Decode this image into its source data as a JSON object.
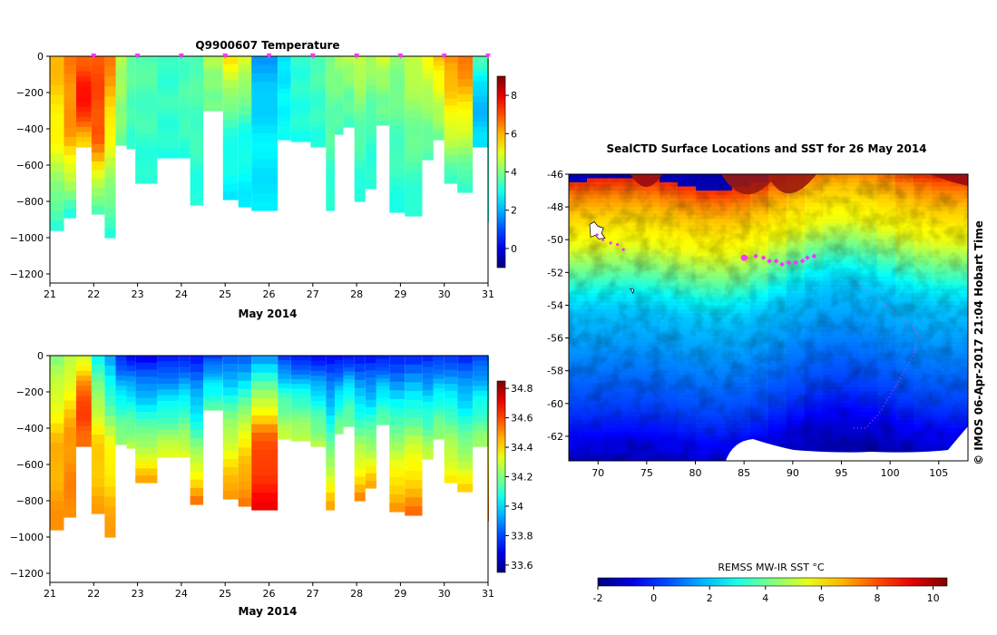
{
  "colors": {
    "pink_marker": "#ff33ff",
    "background": "#ffffff",
    "axis": "#000000",
    "map_white": "#ffffff"
  },
  "side_label": "© IMOS 06-Apr-2017 21:04 Hobart Time",
  "chart_data": [
    {
      "id": "temperature_section",
      "type": "heatmap",
      "title": "Q9900607  Temperature",
      "xlabel": "May 2014",
      "ylabel": "",
      "xlim": [
        21,
        31
      ],
      "ylim": [
        -1250,
        0
      ],
      "xticks": [
        21,
        22,
        23,
        24,
        25,
        26,
        27,
        28,
        29,
        30,
        31
      ],
      "xtick_labels": [
        "21",
        "22",
        "23",
        "24",
        "25",
        "26",
        "27",
        "28",
        "29",
        "30",
        "31"
      ],
      "yticks": [
        0,
        -200,
        -400,
        -600,
        -800,
        -1000,
        -1200
      ],
      "ytick_labels": [
        "0",
        "−200",
        "−400",
        "−600",
        "−800",
        "−1000",
        "−1200"
      ],
      "profile_marks": [
        22,
        23,
        24,
        25,
        26,
        27,
        28,
        29,
        30,
        31
      ],
      "colorbar": {
        "min": -1,
        "max": 9,
        "ticks": [
          0,
          2,
          4,
          6,
          8
        ],
        "tick_labels": [
          "0",
          "2",
          "4",
          "6",
          "8"
        ],
        "colormap": "jet"
      },
      "profiles": [
        {
          "x0": 21.0,
          "x1": 21.32,
          "maxdepth": 960,
          "top": 6.0,
          "mid": 5.2,
          "deep": 3.0
        },
        {
          "x0": 21.32,
          "x1": 21.6,
          "maxdepth": 890,
          "top": 6.5,
          "mid": 6.2,
          "deep": 3.0
        },
        {
          "x0": 21.6,
          "x1": 21.95,
          "maxdepth": 500,
          "top": 6.8,
          "mid": 7.8,
          "deep": 5.5
        },
        {
          "x0": 21.95,
          "x1": 22.25,
          "maxdepth": 870,
          "top": 7.0,
          "mid": 7.0,
          "deep": 3.2
        },
        {
          "x0": 22.25,
          "x1": 22.5,
          "maxdepth": 1000,
          "top": 6.6,
          "mid": 5.0,
          "deep": 3.0
        },
        {
          "x0": 22.5,
          "x1": 22.75,
          "maxdepth": 490,
          "top": 4.5,
          "mid": 4.2,
          "deep": 3.8
        },
        {
          "x0": 22.75,
          "x1": 22.95,
          "maxdepth": 510,
          "top": 3.8,
          "mid": 3.5,
          "deep": 3.2
        },
        {
          "x0": 22.95,
          "x1": 23.45,
          "maxdepth": 700,
          "top": 3.6,
          "mid": 3.4,
          "deep": 3.0
        },
        {
          "x0": 23.45,
          "x1": 23.95,
          "maxdepth": 560,
          "top": 3.2,
          "mid": 3.3,
          "deep": 3.0
        },
        {
          "x0": 23.95,
          "x1": 24.2,
          "maxdepth": 560,
          "top": 3.4,
          "mid": 3.5,
          "deep": 3.1
        },
        {
          "x0": 24.2,
          "x1": 24.5,
          "maxdepth": 820,
          "top": 3.6,
          "mid": 3.4,
          "deep": 3.0
        },
        {
          "x0": 24.5,
          "x1": 24.95,
          "maxdepth": 300,
          "top": 4.5,
          "mid": 4.0,
          "deep": 3.8
        },
        {
          "x0": 24.95,
          "x1": 25.3,
          "maxdepth": 790,
          "top": 5.5,
          "mid": 3.2,
          "deep": 2.6
        },
        {
          "x0": 25.3,
          "x1": 25.6,
          "maxdepth": 830,
          "top": 5.0,
          "mid": 3.0,
          "deep": 2.6
        },
        {
          "x0": 25.6,
          "x1": 26.2,
          "maxdepth": 850,
          "top": 1.8,
          "mid": 2.6,
          "deep": 2.5
        },
        {
          "x0": 26.2,
          "x1": 26.5,
          "maxdepth": 460,
          "top": 2.4,
          "mid": 2.7,
          "deep": 2.8
        },
        {
          "x0": 26.5,
          "x1": 26.95,
          "maxdepth": 470,
          "top": 3.2,
          "mid": 3.1,
          "deep": 3.0
        },
        {
          "x0": 26.95,
          "x1": 27.3,
          "maxdepth": 500,
          "top": 3.6,
          "mid": 3.3,
          "deep": 3.1
        },
        {
          "x0": 27.3,
          "x1": 27.5,
          "maxdepth": 850,
          "top": 4.0,
          "mid": 3.6,
          "deep": 3.0
        },
        {
          "x0": 27.5,
          "x1": 27.7,
          "maxdepth": 430,
          "top": 4.3,
          "mid": 3.8,
          "deep": 3.4
        },
        {
          "x0": 27.7,
          "x1": 27.95,
          "maxdepth": 390,
          "top": 4.6,
          "mid": 3.8,
          "deep": 3.4
        },
        {
          "x0": 27.95,
          "x1": 28.2,
          "maxdepth": 800,
          "top": 4.8,
          "mid": 3.6,
          "deep": 3.0
        },
        {
          "x0": 28.2,
          "x1": 28.45,
          "maxdepth": 730,
          "top": 4.4,
          "mid": 3.4,
          "deep": 3.0
        },
        {
          "x0": 28.45,
          "x1": 28.75,
          "maxdepth": 380,
          "top": 4.8,
          "mid": 4.0,
          "deep": 3.6
        },
        {
          "x0": 28.75,
          "x1": 29.1,
          "maxdepth": 860,
          "top": 4.2,
          "mid": 3.5,
          "deep": 3.0
        },
        {
          "x0": 29.1,
          "x1": 29.5,
          "maxdepth": 880,
          "top": 4.8,
          "mid": 3.8,
          "deep": 3.0
        },
        {
          "x0": 29.5,
          "x1": 29.75,
          "maxdepth": 570,
          "top": 5.2,
          "mid": 4.2,
          "deep": 3.4
        },
        {
          "x0": 29.75,
          "x1": 30.0,
          "maxdepth": 460,
          "top": 5.8,
          "mid": 4.8,
          "deep": 3.8
        },
        {
          "x0": 30.0,
          "x1": 30.3,
          "maxdepth": 700,
          "top": 6.4,
          "mid": 5.2,
          "deep": 3.2
        },
        {
          "x0": 30.3,
          "x1": 30.65,
          "maxdepth": 750,
          "top": 6.8,
          "mid": 5.0,
          "deep": 3.0
        },
        {
          "x0": 30.65,
          "x1": 31.0,
          "maxdepth": 500,
          "top": 3.5,
          "mid": 2.0,
          "deep": 2.5
        },
        {
          "x0": 31.0,
          "x1": 31.05,
          "maxdepth": 910,
          "top": 4.0,
          "mid": 3.5,
          "deep": 3.0
        }
      ]
    },
    {
      "id": "salinity_section",
      "type": "heatmap",
      "title": "",
      "xlabel": "May 2014",
      "ylabel": "",
      "xlim": [
        21,
        31
      ],
      "ylim": [
        -1250,
        0
      ],
      "xticks": [
        21,
        22,
        23,
        24,
        25,
        26,
        27,
        28,
        29,
        30,
        31
      ],
      "xtick_labels": [
        "21",
        "22",
        "23",
        "24",
        "25",
        "26",
        "27",
        "28",
        "29",
        "30",
        "31"
      ],
      "yticks": [
        0,
        -200,
        -400,
        -600,
        -800,
        -1000,
        -1200
      ],
      "ytick_labels": [
        "0",
        "−200",
        "−400",
        "−600",
        "−800",
        "−1000",
        "−1200"
      ],
      "colorbar": {
        "min": 33.55,
        "max": 34.85,
        "ticks": [
          33.6,
          33.8,
          34,
          34.2,
          34.4,
          34.6,
          34.8
        ],
        "tick_labels": [
          "33.6",
          "33.8",
          "34",
          "34.2",
          "34.4",
          "34.6",
          "34.8"
        ],
        "colormap": "jet"
      },
      "profiles": [
        {
          "x0": 21.0,
          "x1": 21.32,
          "maxdepth": 960,
          "top": 34.2,
          "mid": 34.45,
          "deep": 34.5
        },
        {
          "x0": 21.32,
          "x1": 21.6,
          "maxdepth": 890,
          "top": 34.25,
          "mid": 34.5,
          "deep": 34.52
        },
        {
          "x0": 21.6,
          "x1": 21.95,
          "maxdepth": 500,
          "top": 34.3,
          "mid": 34.62,
          "deep": 34.55
        },
        {
          "x0": 21.95,
          "x1": 22.25,
          "maxdepth": 870,
          "top": 34.05,
          "mid": 34.4,
          "deep": 34.48
        },
        {
          "x0": 22.25,
          "x1": 22.5,
          "maxdepth": 1000,
          "top": 33.9,
          "mid": 34.35,
          "deep": 34.5
        },
        {
          "x0": 22.5,
          "x1": 22.75,
          "maxdepth": 490,
          "top": 33.75,
          "mid": 34.05,
          "deep": 34.25
        },
        {
          "x0": 22.75,
          "x1": 22.95,
          "maxdepth": 510,
          "top": 33.72,
          "mid": 34.05,
          "deep": 34.28
        },
        {
          "x0": 22.95,
          "x1": 23.45,
          "maxdepth": 700,
          "top": 33.7,
          "mid": 34.1,
          "deep": 34.48
        },
        {
          "x0": 23.45,
          "x1": 23.95,
          "maxdepth": 560,
          "top": 33.72,
          "mid": 34.05,
          "deep": 34.35
        },
        {
          "x0": 23.95,
          "x1": 24.2,
          "maxdepth": 560,
          "top": 33.74,
          "mid": 34.08,
          "deep": 34.35
        },
        {
          "x0": 24.2,
          "x1": 24.5,
          "maxdepth": 820,
          "top": 33.74,
          "mid": 34.1,
          "deep": 34.55
        },
        {
          "x0": 24.5,
          "x1": 24.95,
          "maxdepth": 300,
          "top": 33.78,
          "mid": 34.0,
          "deep": 34.15
        },
        {
          "x0": 24.95,
          "x1": 25.3,
          "maxdepth": 790,
          "top": 33.8,
          "mid": 34.25,
          "deep": 34.52
        },
        {
          "x0": 25.3,
          "x1": 25.6,
          "maxdepth": 830,
          "top": 33.82,
          "mid": 34.35,
          "deep": 34.55
        },
        {
          "x0": 25.6,
          "x1": 26.2,
          "maxdepth": 850,
          "top": 33.9,
          "mid": 34.55,
          "deep": 34.7
        },
        {
          "x0": 26.2,
          "x1": 26.5,
          "maxdepth": 460,
          "top": 33.76,
          "mid": 34.12,
          "deep": 34.3
        },
        {
          "x0": 26.5,
          "x1": 26.95,
          "maxdepth": 470,
          "top": 33.72,
          "mid": 34.1,
          "deep": 34.3
        },
        {
          "x0": 26.95,
          "x1": 27.3,
          "maxdepth": 500,
          "top": 33.72,
          "mid": 34.05,
          "deep": 34.28
        },
        {
          "x0": 27.3,
          "x1": 27.5,
          "maxdepth": 850,
          "top": 33.72,
          "mid": 34.1,
          "deep": 34.48
        },
        {
          "x0": 27.5,
          "x1": 27.7,
          "maxdepth": 430,
          "top": 33.7,
          "mid": 34.0,
          "deep": 34.22
        },
        {
          "x0": 27.7,
          "x1": 27.95,
          "maxdepth": 390,
          "top": 33.72,
          "mid": 34.05,
          "deep": 34.2
        },
        {
          "x0": 27.95,
          "x1": 28.2,
          "maxdepth": 800,
          "top": 33.74,
          "mid": 34.15,
          "deep": 34.52
        },
        {
          "x0": 28.2,
          "x1": 28.45,
          "maxdepth": 730,
          "top": 33.72,
          "mid": 34.1,
          "deep": 34.48
        },
        {
          "x0": 28.45,
          "x1": 28.75,
          "maxdepth": 380,
          "top": 33.72,
          "mid": 34.0,
          "deep": 34.18
        },
        {
          "x0": 28.75,
          "x1": 29.1,
          "maxdepth": 860,
          "top": 33.74,
          "mid": 34.2,
          "deep": 34.52
        },
        {
          "x0": 29.1,
          "x1": 29.5,
          "maxdepth": 880,
          "top": 33.76,
          "mid": 34.25,
          "deep": 34.55
        },
        {
          "x0": 29.5,
          "x1": 29.75,
          "maxdepth": 570,
          "top": 33.74,
          "mid": 34.05,
          "deep": 34.3
        },
        {
          "x0": 29.75,
          "x1": 30.0,
          "maxdepth": 460,
          "top": 33.76,
          "mid": 34.05,
          "deep": 34.25
        },
        {
          "x0": 30.0,
          "x1": 30.3,
          "maxdepth": 700,
          "top": 33.78,
          "mid": 34.15,
          "deep": 34.4
        },
        {
          "x0": 30.3,
          "x1": 30.65,
          "maxdepth": 750,
          "top": 33.76,
          "mid": 34.1,
          "deep": 34.42
        },
        {
          "x0": 30.65,
          "x1": 31.0,
          "maxdepth": 500,
          "top": 33.78,
          "mid": 34.05,
          "deep": 34.25
        },
        {
          "x0": 31.0,
          "x1": 31.05,
          "maxdepth": 910,
          "top": 33.9,
          "mid": 34.3,
          "deep": 34.6
        }
      ]
    },
    {
      "id": "sst_map",
      "type": "heatmap",
      "title": "SealCTD Surface Locations and SST for 26 May 2014",
      "xlabel": "",
      "ylabel": "",
      "xlim": [
        67,
        108
      ],
      "ylim": [
        -63.5,
        -46
      ],
      "xticks": [
        70,
        75,
        80,
        85,
        90,
        95,
        100,
        105
      ],
      "xtick_labels": [
        "70",
        "75",
        "80",
        "85",
        "90",
        "95",
        "100",
        "105"
      ],
      "yticks": [
        -46,
        -48,
        -50,
        -52,
        -54,
        -56,
        -58,
        -60,
        -62
      ],
      "ytick_labels": [
        "-46",
        "-48",
        "-50",
        "-52",
        "-54",
        "-56",
        "-58",
        "-60",
        "-62"
      ],
      "colorbar": {
        "label": "REMSS MW-IR SST °C",
        "min": -2,
        "max": 10.5,
        "ticks": [
          -2,
          0,
          2,
          4,
          6,
          8,
          10
        ],
        "tick_labels": [
          "-2",
          "0",
          "2",
          "4",
          "6",
          "8",
          "10"
        ],
        "colormap": "jet"
      },
      "sst_field_by_latitude": [
        {
          "lat": -46,
          "sst": 8.5
        },
        {
          "lat": -47,
          "sst": 7.3
        },
        {
          "lat": -48,
          "sst": 6.5
        },
        {
          "lat": -49,
          "sst": 6.0
        },
        {
          "lat": -50,
          "sst": 5.6
        },
        {
          "lat": -51,
          "sst": 4.6
        },
        {
          "lat": -52,
          "sst": 3.6
        },
        {
          "lat": -53,
          "sst": 2.6
        },
        {
          "lat": -54,
          "sst": 2.0
        },
        {
          "lat": -56,
          "sst": 1.5
        },
        {
          "lat": -58,
          "sst": 0.9
        },
        {
          "lat": -60,
          "sst": 0.3
        },
        {
          "lat": -62,
          "sst": -0.6
        },
        {
          "lat": -63.5,
          "sst": -1.3
        }
      ],
      "surface_track": [
        {
          "lon": 85.2,
          "lat": -51.1
        },
        {
          "lon": 86.2,
          "lat": -51.0
        },
        {
          "lon": 87.0,
          "lat": -51.1
        },
        {
          "lon": 87.6,
          "lat": -51.3
        },
        {
          "lon": 88.3,
          "lat": -51.3
        },
        {
          "lon": 88.9,
          "lat": -51.5
        },
        {
          "lon": 89.6,
          "lat": -51.4
        },
        {
          "lon": 90.3,
          "lat": -51.4
        },
        {
          "lon": 91.0,
          "lat": -51.3
        },
        {
          "lon": 91.5,
          "lat": -51.1
        },
        {
          "lon": 92.2,
          "lat": -51.0
        }
      ],
      "surface_highlight": {
        "lon": 85.0,
        "lat": -51.1
      },
      "west_track": [
        {
          "lon": 69.9,
          "lat": -49.7
        },
        {
          "lon": 70.5,
          "lat": -50.0
        },
        {
          "lon": 71.3,
          "lat": -50.2
        },
        {
          "lon": 72.0,
          "lat": -50.3
        },
        {
          "lon": 72.6,
          "lat": -50.6
        }
      ],
      "dotted_track": [
        {
          "lon": 96.0,
          "lat": -52.5
        },
        {
          "lon": 98.5,
          "lat": -53.5
        },
        {
          "lon": 100.5,
          "lat": -54.5
        },
        {
          "lon": 102.5,
          "lat": -55.4
        },
        {
          "lon": 103.0,
          "lat": -56.0
        },
        {
          "lon": 102.0,
          "lat": -57.5
        },
        {
          "lon": 100.5,
          "lat": -59.0
        },
        {
          "lon": 99.0,
          "lat": -60.5
        },
        {
          "lon": 97.5,
          "lat": -61.5
        },
        {
          "lon": 96.0,
          "lat": -61.5
        }
      ],
      "islands": [
        {
          "name": "kerguelen-island",
          "lon": 69.8,
          "lat": -49.4
        },
        {
          "name": "heard-island",
          "lon": 73.5,
          "lat": -53.1
        }
      ]
    }
  ]
}
